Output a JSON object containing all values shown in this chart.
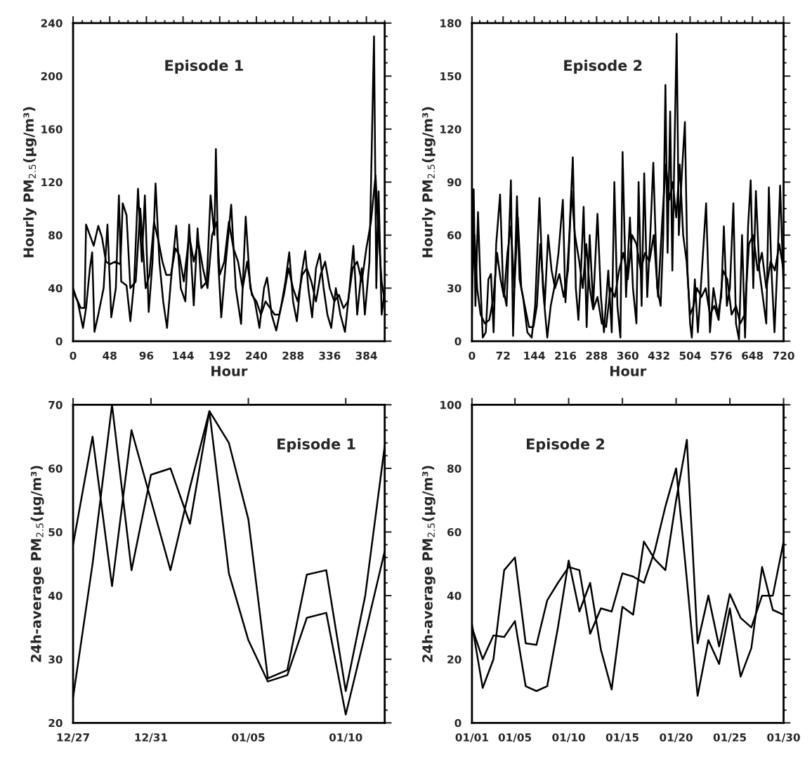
{
  "chart_data": [
    {
      "type": "line",
      "title": "Episode 1",
      "xlabel": "Hour",
      "ylabel": "Hourly PM$_{2.5}$(μg/m³)",
      "xlim": [
        0,
        408
      ],
      "ylim": [
        0,
        240
      ],
      "xticks": [
        0,
        48,
        96,
        144,
        192,
        240,
        288,
        336,
        384
      ],
      "yticks": [
        0,
        40,
        80,
        120,
        160,
        200,
        240
      ],
      "grid": false,
      "legend": false,
      "line_style": "solid",
      "series": [
        {
          "color": "#000000",
          "x": [
            0,
            6,
            13,
            17,
            22,
            25,
            28,
            33,
            40,
            45,
            50,
            56,
            60,
            63,
            70,
            75,
            80,
            85,
            90,
            94,
            99,
            104,
            108,
            113,
            118,
            123,
            128,
            135,
            141,
            147,
            152,
            158,
            163,
            168,
            175,
            180,
            185,
            187,
            190,
            194,
            200,
            207,
            213,
            220,
            226,
            232,
            238,
            244,
            250,
            254,
            260,
            266,
            272,
            278,
            283,
            288,
            293,
            299,
            304,
            308,
            313,
            318,
            323,
            328,
            333,
            338,
            344,
            350,
            356,
            362,
            367,
            372,
            378,
            382,
            388,
            394,
            397,
            400,
            404,
            408
          ],
          "values": [
            38,
            30,
            10,
            25,
            55,
            67,
            7,
            20,
            40,
            88,
            18,
            40,
            110,
            45,
            42,
            15,
            45,
            115,
            60,
            110,
            22,
            60,
            119,
            60,
            30,
            10,
            45,
            87,
            40,
            30,
            88,
            27,
            85,
            40,
            45,
            110,
            80,
            145,
            60,
            18,
            60,
            103,
            40,
            13,
            94,
            40,
            30,
            10,
            40,
            48,
            20,
            8,
            25,
            45,
            67,
            30,
            15,
            50,
            68,
            40,
            18,
            55,
            66,
            40,
            20,
            10,
            40,
            20,
            7,
            40,
            72,
            20,
            55,
            20,
            60,
            230,
            40,
            113,
            20,
            38
          ]
        },
        {
          "color": "#000000",
          "x": [
            0,
            4,
            10,
            15,
            17,
            22,
            27,
            33,
            38,
            43,
            48,
            55,
            62,
            65,
            70,
            75,
            82,
            88,
            95,
            100,
            106,
            112,
            117,
            122,
            128,
            134,
            139,
            145,
            152,
            158,
            164,
            170,
            176,
            182,
            188,
            192,
            198,
            204,
            210,
            216,
            222,
            228,
            234,
            240,
            246,
            252,
            258,
            264,
            270,
            276,
            282,
            288,
            294,
            300,
            306,
            312,
            318,
            324,
            330,
            336,
            342,
            348,
            354,
            360,
            366,
            372,
            378,
            384,
            390,
            396,
            400,
            404,
            408
          ],
          "values": [
            40,
            33,
            25,
            25,
            88,
            80,
            72,
            87,
            78,
            60,
            58,
            60,
            58,
            104,
            95,
            40,
            45,
            100,
            40,
            50,
            90,
            75,
            60,
            50,
            50,
            70,
            65,
            45,
            80,
            60,
            75,
            55,
            40,
            80,
            90,
            50,
            60,
            90,
            70,
            60,
            40,
            60,
            35,
            30,
            20,
            30,
            25,
            20,
            20,
            35,
            55,
            40,
            30,
            50,
            55,
            45,
            30,
            50,
            60,
            40,
            30,
            35,
            25,
            30,
            55,
            60,
            45,
            70,
            90,
            125,
            80,
            45,
            30
          ]
        }
      ]
    },
    {
      "type": "line",
      "title": "Episode 2",
      "xlabel": "Hour",
      "ylabel": "Hourly PM$_{2.5}$(μg/m³)",
      "xlim": [
        0,
        720
      ],
      "ylim": [
        0,
        180
      ],
      "xticks": [
        0,
        72,
        144,
        216,
        288,
        360,
        432,
        504,
        576,
        648,
        720
      ],
      "yticks": [
        0,
        30,
        60,
        90,
        120,
        150,
        180
      ],
      "grid": false,
      "legend": false,
      "line_style": "solid",
      "series": [
        {
          "color": "#000000",
          "x": [
            0,
            4,
            8,
            14,
            20,
            25,
            32,
            38,
            44,
            50,
            56,
            65,
            72,
            80,
            90,
            95,
            104,
            110,
            118,
            128,
            138,
            146,
            156,
            164,
            174,
            182,
            190,
            200,
            210,
            216,
            225,
            233,
            240,
            246,
            252,
            258,
            265,
            272,
            280,
            290,
            298,
            305,
            315,
            323,
            329,
            336,
            343,
            348,
            356,
            365,
            372,
            380,
            385,
            392,
            398,
            405,
            412,
            419,
            428,
            436,
            442,
            447,
            452,
            458,
            463,
            468,
            473,
            478,
            485,
            492,
            498,
            504,
            508,
            515,
            522,
            530,
            541,
            550,
            558,
            568,
            576,
            582,
            589,
            596,
            604,
            610,
            617,
            624,
            631,
            638,
            644,
            650,
            656,
            664,
            672,
            680,
            686,
            692,
            699,
            706,
            712,
            720
          ],
          "values": [
            15,
            86,
            20,
            73,
            30,
            2,
            5,
            35,
            38,
            5,
            55,
            83,
            30,
            20,
            91,
            3,
            82,
            35,
            25,
            5,
            2,
            20,
            81,
            30,
            2,
            20,
            30,
            50,
            80,
            22,
            60,
            104,
            30,
            12,
            40,
            76,
            8,
            60,
            20,
            72,
            25,
            5,
            40,
            5,
            90,
            20,
            2,
            107,
            25,
            70,
            30,
            10,
            90,
            20,
            95,
            25,
            60,
            101,
            30,
            20,
            60,
            145,
            50,
            130,
            40,
            110,
            174,
            60,
            95,
            124,
            40,
            10,
            2,
            35,
            5,
            35,
            78,
            5,
            30,
            15,
            25,
            65,
            20,
            30,
            78,
            10,
            1,
            60,
            2,
            65,
            91,
            30,
            85,
            40,
            25,
            10,
            87,
            40,
            5,
            45,
            88,
            30
          ]
        },
        {
          "color": "#000000",
          "x": [
            0,
            6,
            12,
            20,
            30,
            40,
            50,
            58,
            66,
            74,
            82,
            90,
            98,
            106,
            114,
            122,
            132,
            142,
            150,
            158,
            168,
            176,
            184,
            192,
            202,
            212,
            222,
            230,
            238,
            248,
            256,
            264,
            272,
            280,
            290,
            300,
            310,
            320,
            330,
            340,
            350,
            360,
            370,
            380,
            390,
            400,
            410,
            420,
            430,
            440,
            448,
            456,
            464,
            472,
            480,
            488,
            496,
            504,
            512,
            520,
            530,
            540,
            550,
            560,
            570,
            580,
            590,
            600,
            610,
            620,
            630,
            640,
            650,
            660,
            670,
            680,
            690,
            700,
            710,
            720
          ],
          "values": [
            30,
            60,
            30,
            15,
            10,
            12,
            25,
            50,
            35,
            25,
            50,
            65,
            30,
            70,
            30,
            20,
            8,
            8,
            20,
            55,
            20,
            60,
            40,
            30,
            38,
            25,
            40,
            85,
            60,
            45,
            30,
            55,
            30,
            18,
            25,
            10,
            8,
            30,
            25,
            40,
            50,
            35,
            60,
            55,
            40,
            50,
            45,
            60,
            25,
            70,
            100,
            80,
            90,
            70,
            100,
            60,
            45,
            15,
            20,
            30,
            25,
            30,
            15,
            20,
            12,
            40,
            35,
            15,
            20,
            10,
            15,
            55,
            60,
            40,
            50,
            30,
            45,
            40,
            55,
            40
          ]
        }
      ]
    },
    {
      "type": "line",
      "title": "Episode 1",
      "ylabel": "24h-average PM$_{2.5}$(μg/m³)",
      "categories": [
        "12/27",
        null,
        null,
        null,
        "12/31",
        null,
        null,
        null,
        null,
        "01/05",
        null,
        null,
        null,
        null,
        "01/10",
        null,
        null
      ],
      "ylim": [
        20,
        70
      ],
      "yticks": [
        20,
        30,
        40,
        50,
        60,
        70
      ],
      "grid": false,
      "legend": false,
      "line_style": "solid",
      "series": [
        {
          "color": "#000000",
          "values": [
            48,
            65,
            41.5,
            66,
            55,
            44,
            57,
            69,
            64,
            52,
            27,
            28.3,
            43.3,
            44,
            25,
            40,
            63.5
          ]
        },
        {
          "color": "#000000",
          "values": [
            24,
            45,
            70,
            44,
            59,
            60,
            51.3,
            69,
            43.5,
            33,
            26.5,
            27.5,
            36.5,
            37.3,
            21.3,
            34,
            47
          ]
        }
      ]
    },
    {
      "type": "line",
      "title": "Episode 2",
      "ylabel": "24h-average PM$_{2.5}$(μg/m³)",
      "categories": [
        "01/01",
        null,
        null,
        null,
        "01/05",
        null,
        null,
        null,
        null,
        "01/10",
        null,
        null,
        null,
        null,
        "01/15",
        null,
        null,
        null,
        null,
        "01/20",
        null,
        null,
        null,
        null,
        "01/25",
        null,
        null,
        null,
        null,
        "01/30"
      ],
      "ylim": [
        0,
        100
      ],
      "yticks": [
        0,
        20,
        40,
        60,
        80,
        100
      ],
      "grid": false,
      "legend": false,
      "line_style": "solid",
      "series": [
        {
          "color": "#000000",
          "values": [
            31,
            11,
            20,
            48,
            52,
            25,
            24.5,
            38.5,
            44,
            49,
            48,
            28,
            36,
            35,
            47,
            46,
            44,
            54,
            68,
            80,
            45,
            8.5,
            26,
            18.5,
            36,
            14.5,
            23.5,
            49,
            35.5,
            34
          ]
        },
        {
          "color": "#000000",
          "values": [
            30,
            20,
            27.5,
            27,
            32,
            11.5,
            10,
            11.5,
            30,
            51,
            35,
            44,
            23,
            10.5,
            36.5,
            34,
            57,
            51.5,
            48,
            70,
            89,
            25,
            40,
            24,
            40.5,
            33,
            30,
            40,
            40,
            57
          ]
        }
      ]
    }
  ]
}
